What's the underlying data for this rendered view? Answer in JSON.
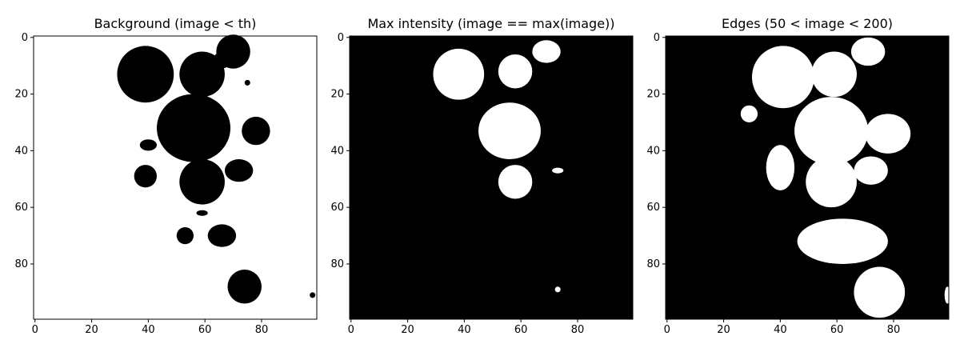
{
  "chart_data": [
    {
      "type": "heatmap",
      "title": "Background (image < th)",
      "xlim": [
        0,
        99
      ],
      "ylim": [
        99,
        0
      ],
      "xticks": [
        0,
        20,
        40,
        60,
        80
      ],
      "yticks": [
        0,
        20,
        40,
        60,
        80
      ],
      "colormap": [
        "#000000",
        "#ffffff"
      ],
      "foreground": "#000000",
      "background": "#ffffff",
      "regions": [
        {
          "cx": 39,
          "cy": 13,
          "rx": 10,
          "ry": 10
        },
        {
          "cx": 59,
          "cy": 13,
          "rx": 8,
          "ry": 8
        },
        {
          "cx": 70,
          "cy": 5,
          "rx": 6,
          "ry": 6
        },
        {
          "cx": 66,
          "cy": 8,
          "rx": 3,
          "ry": 3
        },
        {
          "cx": 75,
          "cy": 16,
          "rx": 1,
          "ry": 1
        },
        {
          "cx": 56,
          "cy": 32,
          "rx": 13,
          "ry": 12
        },
        {
          "cx": 78,
          "cy": 33,
          "rx": 5,
          "ry": 5
        },
        {
          "cx": 40,
          "cy": 38,
          "rx": 3,
          "ry": 2
        },
        {
          "cx": 39,
          "cy": 49,
          "rx": 4,
          "ry": 4
        },
        {
          "cx": 59,
          "cy": 51,
          "rx": 8,
          "ry": 8
        },
        {
          "cx": 72,
          "cy": 47,
          "rx": 5,
          "ry": 4
        },
        {
          "cx": 59,
          "cy": 62,
          "rx": 2,
          "ry": 1
        },
        {
          "cx": 53,
          "cy": 70,
          "rx": 3,
          "ry": 3
        },
        {
          "cx": 66,
          "cy": 70,
          "rx": 5,
          "ry": 4
        },
        {
          "cx": 74,
          "cy": 88,
          "rx": 6,
          "ry": 6
        },
        {
          "cx": 98,
          "cy": 91,
          "rx": 1,
          "ry": 1
        }
      ]
    },
    {
      "type": "heatmap",
      "title": "Max intensity (image == max(image))",
      "xlim": [
        0,
        99
      ],
      "ylim": [
        99,
        0
      ],
      "xticks": [
        0,
        20,
        40,
        60,
        80
      ],
      "yticks": [
        0,
        20,
        40,
        60,
        80
      ],
      "colormap": [
        "#000000",
        "#ffffff"
      ],
      "foreground": "#ffffff",
      "background": "#000000",
      "regions": [
        {
          "cx": 38,
          "cy": 13,
          "rx": 9,
          "ry": 9
        },
        {
          "cx": 58,
          "cy": 12,
          "rx": 6,
          "ry": 6
        },
        {
          "cx": 69,
          "cy": 5,
          "rx": 5,
          "ry": 4
        },
        {
          "cx": 56,
          "cy": 33,
          "rx": 11,
          "ry": 10
        },
        {
          "cx": 58,
          "cy": 51,
          "rx": 6,
          "ry": 6
        },
        {
          "cx": 73,
          "cy": 47,
          "rx": 2,
          "ry": 1
        },
        {
          "cx": 73,
          "cy": 89,
          "rx": 1,
          "ry": 1
        }
      ]
    },
    {
      "type": "heatmap",
      "title": "Edges (50 < image < 200)",
      "xlim": [
        0,
        99
      ],
      "ylim": [
        99,
        0
      ],
      "xticks": [
        0,
        20,
        40,
        60,
        80
      ],
      "yticks": [
        0,
        20,
        40,
        60,
        80
      ],
      "colormap": [
        "#000000",
        "#ffffff"
      ],
      "foreground": "#ffffff",
      "background": "#000000",
      "regions": [
        {
          "cx": 41,
          "cy": 14,
          "rx": 11,
          "ry": 11
        },
        {
          "cx": 59,
          "cy": 13,
          "rx": 8,
          "ry": 8
        },
        {
          "cx": 71,
          "cy": 5,
          "rx": 6,
          "ry": 5
        },
        {
          "cx": 58,
          "cy": 33,
          "rx": 13,
          "ry": 12
        },
        {
          "cx": 78,
          "cy": 34,
          "rx": 8,
          "ry": 7
        },
        {
          "cx": 40,
          "cy": 46,
          "rx": 5,
          "ry": 8
        },
        {
          "cx": 58,
          "cy": 51,
          "rx": 9,
          "ry": 9
        },
        {
          "cx": 72,
          "cy": 47,
          "rx": 6,
          "ry": 5
        },
        {
          "cx": 62,
          "cy": 72,
          "rx": 16,
          "ry": 8
        },
        {
          "cx": 75,
          "cy": 90,
          "rx": 9,
          "ry": 9
        },
        {
          "cx": 29,
          "cy": 27,
          "rx": 3,
          "ry": 3
        },
        {
          "cx": 99,
          "cy": 91,
          "rx": 1,
          "ry": 3
        }
      ]
    }
  ]
}
